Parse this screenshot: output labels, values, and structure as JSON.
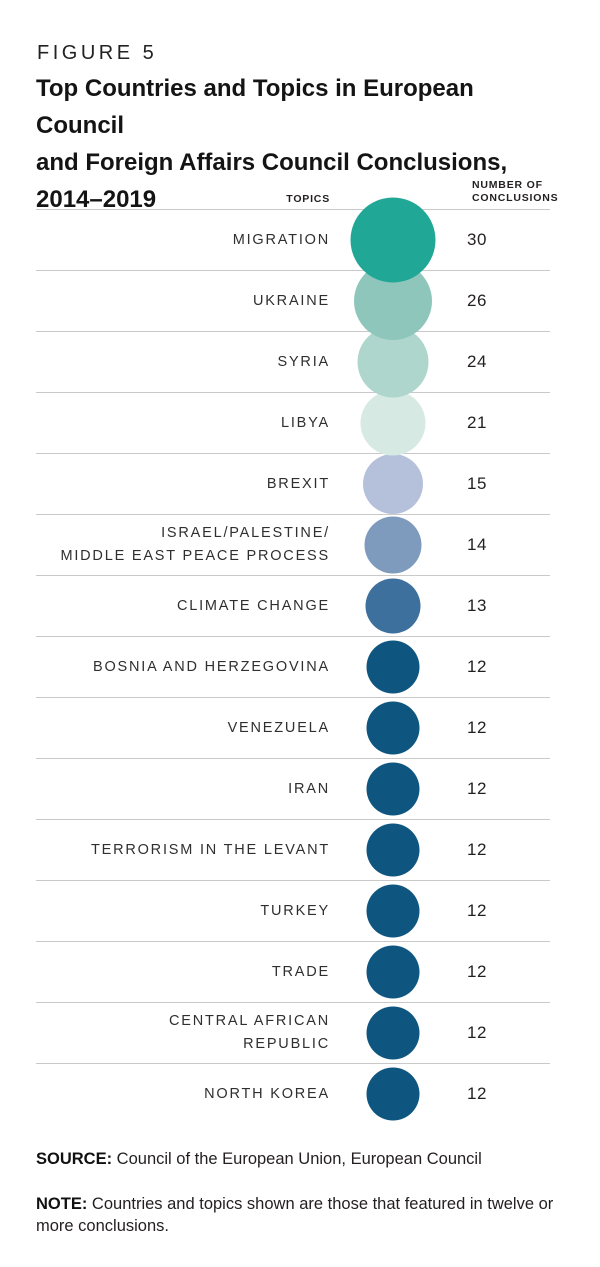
{
  "figure": {
    "kicker": "FIGURE 5",
    "title": "Top Countries and Topics in European Council\nand Foreign Affairs Council Conclusions,\n2014–2019"
  },
  "chart_data": {
    "type": "bubble",
    "title": "Top Countries and Topics in European Council and Foreign Affairs Council Conclusions, 2014–2019",
    "columns": {
      "topics_header": "TOPICS",
      "value_header": "NUMBER OF\nCONCLUSIONS"
    },
    "encoding": "bubble area and color encode number of conclusions; rows sorted descending",
    "rows": [
      {
        "topic": "MIGRATION",
        "value": 30,
        "color": "#20a795",
        "diameter": 85
      },
      {
        "topic": "UKRAINE",
        "value": 26,
        "color": "#8ec6bc",
        "diameter": 78
      },
      {
        "topic": "SYRIA",
        "value": 24,
        "color": "#afd6cd",
        "diameter": 71
      },
      {
        "topic": "LIBYA",
        "value": 21,
        "color": "#d7e9e3",
        "diameter": 65
      },
      {
        "topic": "BREXIT",
        "value": 15,
        "color": "#b5c1da",
        "diameter": 60
      },
      {
        "topic": "ISRAEL/PALESTINE/\nMIDDLE EAST PEACE PROCESS",
        "value": 14,
        "color": "#7e9bbd",
        "diameter": 57
      },
      {
        "topic": "CLIMATE CHANGE",
        "value": 13,
        "color": "#3d709d",
        "diameter": 55
      },
      {
        "topic": "BOSNIA AND HERZEGOVINA",
        "value": 12,
        "color": "#0e567f",
        "diameter": 53
      },
      {
        "topic": "VENEZUELA",
        "value": 12,
        "color": "#0e567f",
        "diameter": 53
      },
      {
        "topic": "IRAN",
        "value": 12,
        "color": "#0e567f",
        "diameter": 53
      },
      {
        "topic": "TERRORISM IN THE LEVANT",
        "value": 12,
        "color": "#0e567f",
        "diameter": 53
      },
      {
        "topic": "TURKEY",
        "value": 12,
        "color": "#0e567f",
        "diameter": 53
      },
      {
        "topic": "TRADE",
        "value": 12,
        "color": "#0e567f",
        "diameter": 53
      },
      {
        "topic": "CENTRAL AFRICAN\nREPUBLIC",
        "value": 12,
        "color": "#0e567f",
        "diameter": 53
      },
      {
        "topic": "NORTH KOREA",
        "value": 12,
        "color": "#0e567f",
        "diameter": 53
      }
    ]
  },
  "source": {
    "label": "SOURCE:",
    "text": " Council of the European Union, European Council"
  },
  "note": {
    "label": "NOTE:",
    "text": " Countries and topics shown are those that featured in twelve or\nmore conclusions."
  }
}
